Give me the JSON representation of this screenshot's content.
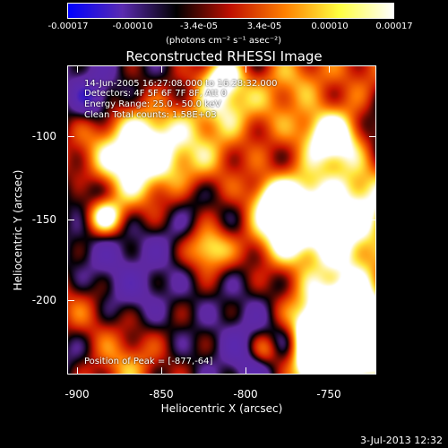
{
  "colorbar": {
    "ticks": [
      "-0.00017",
      "-0.00010",
      "-3.4e-05",
      "3.4e-05",
      "0.00010",
      "0.00017"
    ],
    "units": "(photons cm⁻² s⁻¹ asec⁻²)",
    "colors": [
      "#0000ff",
      "#5a2bb0",
      "#000000",
      "#c01000",
      "#ff8000",
      "#ffff40",
      "#ffffff"
    ]
  },
  "title": "Reconstructed RHESSI Image",
  "info": {
    "time": "14-Jun-2005 16:27:08.000 to 16:28:32.000",
    "detectors": "Detectors: 4F 5F 6F 7F 8F, Att 0",
    "energy": "Energy Range: 25.0 - 50.0 keV",
    "clean": "Clean    Total counts: 1.58E+03",
    "peak": "Position of Peak = [-877,-64]"
  },
  "axes": {
    "xlabel": "Heliocentric X (arcsec)",
    "ylabel": "Heliocentric Y (arcsec)",
    "xticks": [
      "-900",
      "-850",
      "-800",
      "-750"
    ],
    "yticks": [
      "-100",
      "-150",
      "-200"
    ]
  },
  "date": "3-Jul-2013 12:32"
}
